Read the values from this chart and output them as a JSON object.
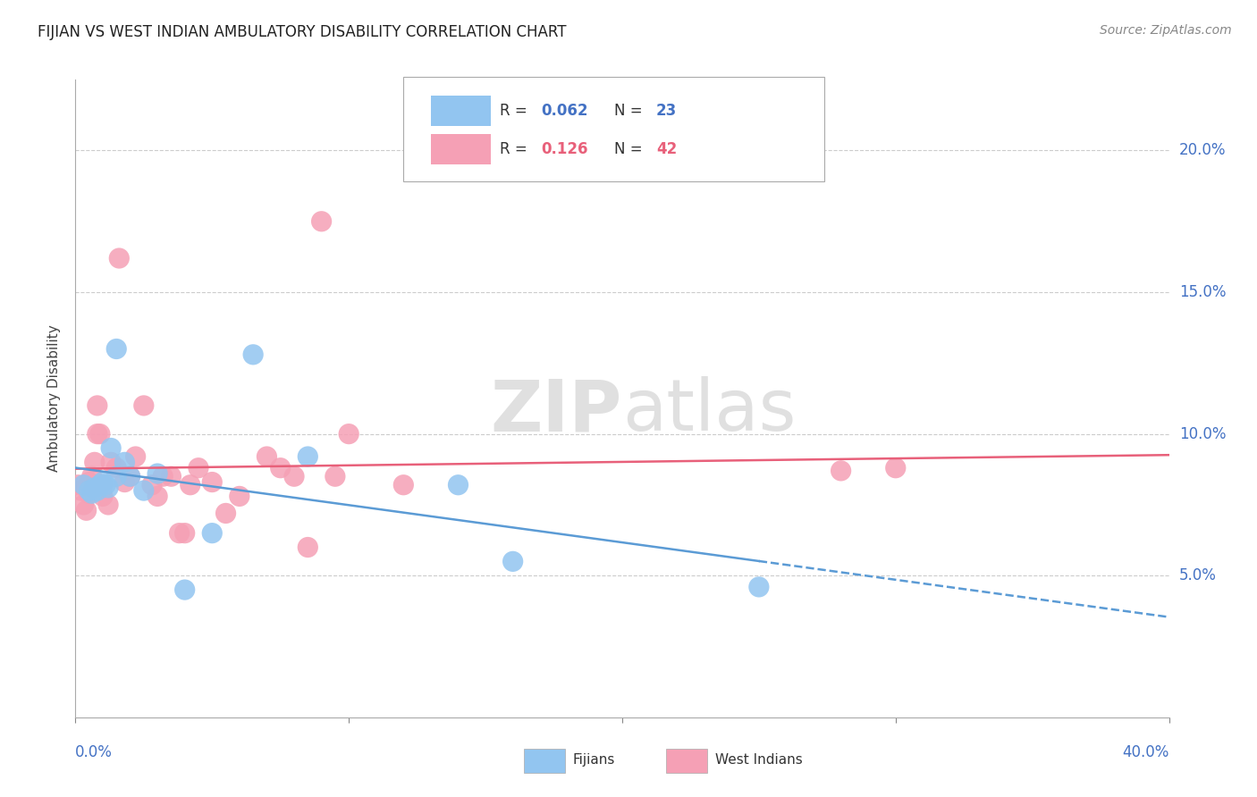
{
  "title": "FIJIAN VS WEST INDIAN AMBULATORY DISABILITY CORRELATION CHART",
  "source": "Source: ZipAtlas.com",
  "ylabel": "Ambulatory Disability",
  "ylabel_right_labels": [
    "20.0%",
    "15.0%",
    "10.0%",
    "5.0%"
  ],
  "ylabel_right_values": [
    0.2,
    0.15,
    0.1,
    0.05
  ],
  "xlim": [
    0.0,
    0.4
  ],
  "ylim": [
    0.0,
    0.225
  ],
  "fijian_color": "#92c5f0",
  "west_indian_color": "#f5a0b5",
  "fijian_line_color": "#5b9bd5",
  "west_indian_line_color": "#e8607a",
  "legend_r_fijian": "0.062",
  "legend_n_fijian": "23",
  "legend_r_west_indian": "0.126",
  "legend_n_west_indian": "42",
  "fijian_x": [
    0.003,
    0.005,
    0.006,
    0.007,
    0.008,
    0.009,
    0.01,
    0.011,
    0.012,
    0.013,
    0.015,
    0.015,
    0.018,
    0.02,
    0.025,
    0.03,
    0.04,
    0.05,
    0.065,
    0.085,
    0.14,
    0.16,
    0.25
  ],
  "fijian_y": [
    0.082,
    0.08,
    0.079,
    0.081,
    0.08,
    0.082,
    0.083,
    0.082,
    0.081,
    0.095,
    0.13,
    0.085,
    0.09,
    0.085,
    0.08,
    0.086,
    0.045,
    0.065,
    0.128,
    0.092,
    0.082,
    0.055,
    0.046
  ],
  "west_indian_x": [
    0.001,
    0.002,
    0.003,
    0.004,
    0.005,
    0.005,
    0.006,
    0.007,
    0.008,
    0.008,
    0.009,
    0.01,
    0.01,
    0.012,
    0.013,
    0.015,
    0.016,
    0.018,
    0.02,
    0.022,
    0.025,
    0.028,
    0.03,
    0.032,
    0.035,
    0.038,
    0.04,
    0.042,
    0.045,
    0.05,
    0.055,
    0.06,
    0.07,
    0.075,
    0.08,
    0.085,
    0.09,
    0.095,
    0.1,
    0.12,
    0.28,
    0.3
  ],
  "west_indian_y": [
    0.082,
    0.08,
    0.075,
    0.073,
    0.083,
    0.079,
    0.085,
    0.09,
    0.11,
    0.1,
    0.1,
    0.082,
    0.078,
    0.075,
    0.09,
    0.088,
    0.162,
    0.083,
    0.085,
    0.092,
    0.11,
    0.082,
    0.078,
    0.085,
    0.085,
    0.065,
    0.065,
    0.082,
    0.088,
    0.083,
    0.072,
    0.078,
    0.092,
    0.088,
    0.085,
    0.06,
    0.175,
    0.085,
    0.1,
    0.082,
    0.087,
    0.088
  ],
  "background_color": "#ffffff",
  "grid_color": "#cccccc",
  "watermark_zip": "ZIP",
  "watermark_atlas": "atlas",
  "watermark_color": "#e0e0e0"
}
